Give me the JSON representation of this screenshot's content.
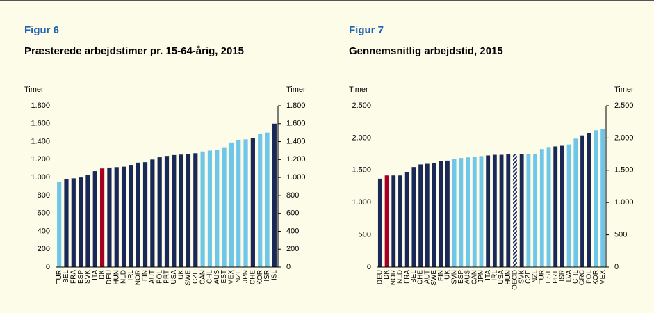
{
  "chart_data": [
    {
      "type": "bar",
      "figure_label": "Figur 6",
      "title": "Præsterede arbejdstimer pr. 15-64-årig, 2015",
      "ylabel": "Timer",
      "y2label": "Timer",
      "categories": [
        "TUR",
        "BEL",
        "FRA",
        "ESP",
        "SVK",
        "ITA",
        "DK",
        "DEU",
        "HUN",
        "NLD",
        "IRL",
        "NOR",
        "FIN",
        "AUT",
        "POL",
        "PRT",
        "USA",
        "UK",
        "SWE",
        "CZE",
        "CAN",
        "CHL",
        "AUS",
        "EST",
        "MEX",
        "NZL",
        "JPN",
        "CHE",
        "KOR",
        "ISR",
        "ISL"
      ],
      "values": [
        950,
        980,
        990,
        1000,
        1030,
        1070,
        1100,
        1110,
        1115,
        1120,
        1140,
        1165,
        1170,
        1200,
        1225,
        1240,
        1250,
        1255,
        1260,
        1270,
        1290,
        1300,
        1310,
        1330,
        1390,
        1420,
        1425,
        1440,
        1490,
        1500,
        1600
      ],
      "colors": [
        "#6ec6e8",
        "#1a2857",
        "#1a2857",
        "#1a2857",
        "#1a2857",
        "#1a2857",
        "#a50021",
        "#1a2857",
        "#1a2857",
        "#1a2857",
        "#1a2857",
        "#1a2857",
        "#1a2857",
        "#1a2857",
        "#1a2857",
        "#1a2857",
        "#1a2857",
        "#1a2857",
        "#1a2857",
        "#1a2857",
        "#6ec6e8",
        "#6ec6e8",
        "#6ec6e8",
        "#6ec6e8",
        "#6ec6e8",
        "#6ec6e8",
        "#6ec6e8",
        "#1a2857",
        "#6ec6e8",
        "#6ec6e8",
        "#1a2857"
      ],
      "ylim": [
        0,
        1800
      ],
      "yticks": [
        0,
        200,
        400,
        600,
        800,
        {
          "value": 1000,
          "label": "1.000"
        },
        {
          "value": 1200,
          "label": "1.200"
        },
        {
          "value": 1400,
          "label": "1.400"
        },
        {
          "value": 1600,
          "label": "1.600"
        },
        {
          "value": 1800,
          "label": "1.800"
        }
      ],
      "y2lim": [
        0,
        1800
      ],
      "y2ticks": [
        0,
        200,
        400,
        600,
        800,
        {
          "value": 1000,
          "label": "1.000"
        },
        {
          "value": 1200,
          "label": "1.200"
        },
        {
          "value": 1400,
          "label": "1.400"
        },
        {
          "value": 1600,
          "label": "1.600"
        },
        {
          "value": 1800,
          "label": "1.800"
        }
      ]
    },
    {
      "type": "bar",
      "figure_label": "Figur 7",
      "title": "Gennemsnitlig arbejdstid, 2015",
      "ylabel": "Timer",
      "y2label": "Timer",
      "categories": [
        "DEU",
        "DK",
        "NOR",
        "NLD",
        "FRA",
        "BEL",
        "CHE",
        "AUT",
        "SWE",
        "FIN",
        "UK",
        "SVN",
        "ESP",
        "AUS",
        "CAN",
        "JPN",
        "ITA",
        "IRL",
        "USA",
        "HUN",
        "OECD",
        "SVK",
        "CZE",
        "NZL",
        "TUR",
        "EST",
        "PRT",
        "ISR",
        "LVA",
        "CHL",
        "GRC",
        "POL",
        "KOR",
        "MEX"
      ],
      "values": [
        1370,
        1420,
        1420,
        1420,
        1470,
        1550,
        1590,
        1600,
        1610,
        1640,
        1650,
        1680,
        1690,
        1700,
        1710,
        1720,
        1730,
        1740,
        1740,
        1750,
        1750,
        1750,
        1750,
        1750,
        1830,
        1850,
        1870,
        1880,
        1900,
        1990,
        2040,
        2080,
        2120,
        2140
      ],
      "colors": [
        "#1a2857",
        "#a50021",
        "#1a2857",
        "#1a2857",
        "#1a2857",
        "#1a2857",
        "#1a2857",
        "#1a2857",
        "#1a2857",
        "#1a2857",
        "#1a2857",
        "#6ec6e8",
        "#6ec6e8",
        "#6ec6e8",
        "#6ec6e8",
        "#6ec6e8",
        "#1a2857",
        "#1a2857",
        "#1a2857",
        "#1a2857",
        "hatched",
        "#1a2857",
        "#6ec6e8",
        "#6ec6e8",
        "#6ec6e8",
        "#6ec6e8",
        "#1a2857",
        "#1a2857",
        "#6ec6e8",
        "#6ec6e8",
        "#1a2857",
        "#1a2857",
        "#6ec6e8",
        "#6ec6e8"
      ],
      "ylim": [
        0,
        2500
      ],
      "yticks": [
        0,
        500,
        {
          "value": 1000,
          "label": "1.000"
        },
        {
          "value": 1500,
          "label": "1.500"
        },
        {
          "value": 2000,
          "label": "2.000"
        },
        {
          "value": 2500,
          "label": "2.500"
        }
      ],
      "y2lim": [
        0,
        2500
      ],
      "y2ticks": [
        0,
        500,
        {
          "value": 1000,
          "label": "1.000"
        },
        {
          "value": 1500,
          "label": "1.500"
        },
        {
          "value": 2000,
          "label": "2.000"
        },
        {
          "value": 2500,
          "label": "2.500"
        }
      ]
    }
  ]
}
